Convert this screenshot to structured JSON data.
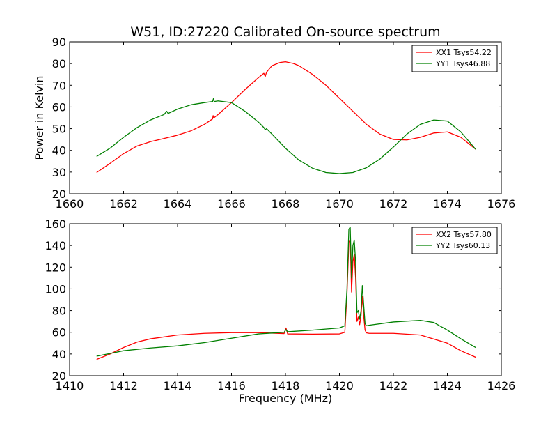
{
  "chart_data": [
    {
      "type": "line",
      "title": "W51, ID:27220 Calibrated On-source spectrum",
      "xlabel": "",
      "ylabel": "Power in Kelvin",
      "xlim": [
        1660,
        1676
      ],
      "ylim": [
        20,
        90
      ],
      "xticks": [
        1660,
        1662,
        1664,
        1666,
        1668,
        1670,
        1672,
        1674,
        1676
      ],
      "yticks": [
        20,
        30,
        40,
        50,
        60,
        70,
        80,
        90
      ],
      "legend_position": "top-right",
      "grid": false,
      "series": [
        {
          "name": "XX1 Tsys54.22",
          "color": "#ff0000",
          "x": [
            1661.0,
            1661.5,
            1662.0,
            1662.5,
            1663.0,
            1663.5,
            1664.0,
            1664.5,
            1665.0,
            1665.3,
            1665.32,
            1665.35,
            1665.5,
            1666.0,
            1666.5,
            1667.0,
            1667.2,
            1667.25,
            1667.3,
            1667.5,
            1667.8,
            1668.0,
            1668.3,
            1668.5,
            1669.0,
            1669.5,
            1670.0,
            1670.5,
            1671.0,
            1671.5,
            1672.0,
            1672.5,
            1673.0,
            1673.5,
            1674.0,
            1674.5,
            1675.05
          ],
          "y": [
            29.8,
            34.0,
            38.5,
            42.0,
            44.0,
            45.5,
            47.0,
            49.0,
            52.0,
            54.5,
            56.0,
            55.0,
            56.5,
            62.0,
            68.0,
            73.5,
            75.5,
            74.0,
            76.0,
            79.0,
            80.5,
            80.8,
            80.0,
            79.0,
            75.0,
            70.0,
            64.0,
            58.0,
            52.0,
            47.5,
            45.0,
            44.8,
            46.0,
            48.0,
            48.5,
            46.0,
            40.5
          ]
        },
        {
          "name": "YY1 Tsys46.88",
          "color": "#008000",
          "x": [
            1661.0,
            1661.5,
            1662.0,
            1662.5,
            1663.0,
            1663.5,
            1663.6,
            1663.65,
            1664.0,
            1664.5,
            1665.0,
            1665.3,
            1665.33,
            1665.36,
            1665.5,
            1666.0,
            1666.5,
            1667.0,
            1667.2,
            1667.25,
            1667.3,
            1667.5,
            1668.0,
            1668.5,
            1669.0,
            1669.5,
            1670.0,
            1670.5,
            1671.0,
            1671.5,
            1672.0,
            1672.5,
            1673.0,
            1673.5,
            1674.0,
            1674.5,
            1675.05
          ],
          "y": [
            37.2,
            41.0,
            46.0,
            50.5,
            54.0,
            56.5,
            58.0,
            57.0,
            59.0,
            61.0,
            62.0,
            62.5,
            63.8,
            62.5,
            62.8,
            62.0,
            58.0,
            53.0,
            50.5,
            49.5,
            50.0,
            47.5,
            41.0,
            35.5,
            31.8,
            29.8,
            29.3,
            29.8,
            32.0,
            36.0,
            41.5,
            47.5,
            52.0,
            54.0,
            53.5,
            48.5,
            40.5
          ]
        }
      ]
    },
    {
      "type": "line",
      "title": "",
      "xlabel": "Frequency (MHz)",
      "ylabel": "",
      "xlim": [
        1410,
        1426
      ],
      "ylim": [
        20,
        160
      ],
      "xticks": [
        1410,
        1412,
        1414,
        1416,
        1418,
        1420,
        1422,
        1424,
        1426
      ],
      "yticks": [
        20,
        40,
        60,
        80,
        100,
        120,
        140,
        160
      ],
      "legend_position": "top-right",
      "grid": false,
      "series": [
        {
          "name": "XX2 Tsys57.80",
          "color": "#ff0000",
          "x": [
            1411.0,
            1411.5,
            1412.0,
            1412.5,
            1413.0,
            1414.0,
            1415.0,
            1416.0,
            1417.0,
            1417.95,
            1418.02,
            1418.08,
            1419.0,
            1420.0,
            1420.2,
            1420.28,
            1420.35,
            1420.4,
            1420.45,
            1420.5,
            1420.55,
            1420.6,
            1420.65,
            1420.7,
            1420.75,
            1420.8,
            1420.85,
            1420.9,
            1420.95,
            1421.0,
            1421.1,
            1422.0,
            1423.0,
            1424.0,
            1424.5,
            1425.05
          ],
          "y": [
            35.0,
            40.0,
            46.0,
            51.0,
            54.0,
            57.5,
            59.0,
            59.7,
            59.7,
            58.8,
            64.0,
            58.5,
            58.3,
            58.5,
            60.0,
            95.0,
            143.0,
            145.0,
            97.0,
            125.0,
            132.0,
            110.0,
            70.0,
            74.0,
            67.0,
            75.0,
            93.0,
            75.0,
            62.0,
            59.5,
            59.0,
            59.0,
            57.5,
            50.0,
            43.0,
            37.0
          ]
        },
        {
          "name": "YY2 Tsys60.13",
          "color": "#008000",
          "x": [
            1411.0,
            1411.5,
            1412.0,
            1413.0,
            1414.0,
            1415.0,
            1416.0,
            1417.0,
            1417.95,
            1418.02,
            1418.08,
            1419.0,
            1420.0,
            1420.2,
            1420.28,
            1420.35,
            1420.4,
            1420.45,
            1420.5,
            1420.55,
            1420.6,
            1420.65,
            1420.7,
            1420.75,
            1420.8,
            1420.85,
            1420.9,
            1420.95,
            1421.0,
            1421.1,
            1422.0,
            1423.0,
            1423.5,
            1424.0,
            1424.5,
            1425.05
          ],
          "y": [
            38.0,
            40.5,
            43.0,
            45.5,
            47.5,
            50.5,
            54.5,
            58.5,
            60.0,
            62.5,
            60.5,
            62.0,
            64.0,
            66.0,
            100.0,
            155.0,
            157.0,
            110.0,
            140.0,
            145.0,
            125.0,
            78.0,
            80.0,
            72.0,
            80.0,
            103.0,
            85.0,
            68.0,
            66.0,
            66.5,
            69.5,
            71.0,
            69.0,
            62.0,
            54.0,
            46.0
          ]
        }
      ]
    }
  ]
}
